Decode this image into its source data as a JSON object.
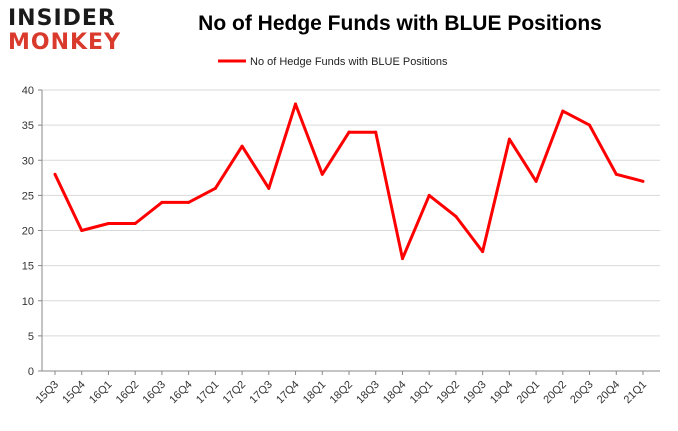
{
  "logo": {
    "line1": "INSIDER",
    "line2": "MONKEY",
    "brand_color": "#d93a2b",
    "text_color": "#1a1a1a"
  },
  "chart_data": {
    "type": "line",
    "title": "No of Hedge Funds with BLUE Positions",
    "xlabel": "",
    "ylabel": "",
    "categories": [
      "15Q3",
      "15Q4",
      "16Q1",
      "16Q2",
      "16Q3",
      "16Q4",
      "17Q1",
      "17Q2",
      "17Q3",
      "17Q4",
      "18Q1",
      "18Q2",
      "18Q3",
      "18Q4",
      "19Q1",
      "19Q2",
      "19Q3",
      "19Q4",
      "20Q1",
      "20Q2",
      "20Q3",
      "20Q4",
      "21Q1"
    ],
    "series": [
      {
        "name": "No of Hedge Funds with BLUE Positions",
        "color": "#ff0000",
        "values": [
          28,
          20,
          21,
          21,
          24,
          24,
          26,
          32,
          26,
          38,
          28,
          34,
          34,
          16,
          25,
          22,
          17,
          33,
          27,
          37,
          35,
          28,
          27
        ]
      }
    ],
    "ylim": [
      0,
      40
    ],
    "yticks": [
      0,
      5,
      10,
      15,
      20,
      25,
      30,
      35,
      40
    ],
    "grid": true,
    "legend_position": "top-center"
  }
}
